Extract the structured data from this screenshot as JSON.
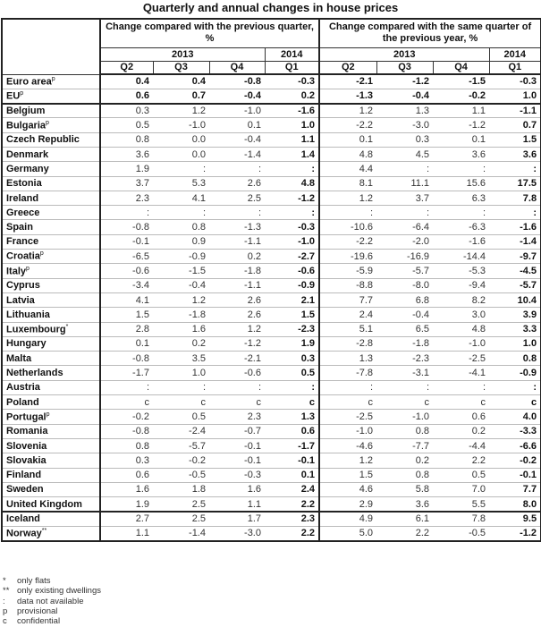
{
  "title": "Quarterly and annual changes in house prices",
  "header": {
    "group_prev_quarter": "Change compared with the previous quarter, %",
    "group_prev_year": "Change compared with the same quarter of the previous year, %",
    "year_2013": "2013",
    "year_2014": "2014",
    "quarters": [
      "Q2",
      "Q3",
      "Q4",
      "Q1"
    ]
  },
  "rows": [
    {
      "name": "Euro area",
      "sup": "p",
      "values": [
        "0.4",
        "0.4",
        "-0.8",
        "-0.3",
        "-2.1",
        "-1.2",
        "-1.5",
        "-0.3"
      ],
      "aggregate": true
    },
    {
      "name": "EU",
      "sup": "p",
      "values": [
        "0.6",
        "0.7",
        "-0.4",
        "0.2",
        "-1.3",
        "-0.4",
        "-0.2",
        "1.0"
      ],
      "aggregate": true,
      "thick": true
    },
    {
      "name": "Belgium",
      "values": [
        "0.3",
        "1.2",
        "-1.0",
        "-1.6",
        "1.2",
        "1.3",
        "1.1",
        "-1.1"
      ]
    },
    {
      "name": "Bulgaria",
      "sup": "p",
      "values": [
        "0.5",
        "-1.0",
        "0.1",
        "1.0",
        "-2.2",
        "-3.0",
        "-1.2",
        "0.7"
      ]
    },
    {
      "name": "Czech Republic",
      "values": [
        "0.8",
        "0.0",
        "-0.4",
        "1.1",
        "0.1",
        "0.3",
        "0.1",
        "1.5"
      ]
    },
    {
      "name": "Denmark",
      "values": [
        "3.6",
        "0.0",
        "-1.4",
        "1.4",
        "4.8",
        "4.5",
        "3.6",
        "3.6"
      ]
    },
    {
      "name": "Germany",
      "values": [
        "1.9",
        ":",
        ":",
        ":",
        "4.4",
        ":",
        ":",
        ":"
      ]
    },
    {
      "name": "Estonia",
      "values": [
        "3.7",
        "5.3",
        "2.6",
        "4.8",
        "8.1",
        "11.1",
        "15.6",
        "17.5"
      ]
    },
    {
      "name": "Ireland",
      "values": [
        "2.3",
        "4.1",
        "2.5",
        "-1.2",
        "1.2",
        "3.7",
        "6.3",
        "7.8"
      ]
    },
    {
      "name": "Greece",
      "values": [
        ":",
        ":",
        ":",
        ":",
        ":",
        ":",
        ":",
        ":"
      ]
    },
    {
      "name": "Spain",
      "values": [
        "-0.8",
        "0.8",
        "-1.3",
        "-0.3",
        "-10.6",
        "-6.4",
        "-6.3",
        "-1.6"
      ]
    },
    {
      "name": "France",
      "values": [
        "-0.1",
        "0.9",
        "-1.1",
        "-1.0",
        "-2.2",
        "-2.0",
        "-1.6",
        "-1.4"
      ]
    },
    {
      "name": "Croatia",
      "sup": "p",
      "values": [
        "-6.5",
        "-0.9",
        "0.2",
        "-2.7",
        "-19.6",
        "-16.9",
        "-14.4",
        "-9.7"
      ]
    },
    {
      "name": "Italy",
      "sup": "p",
      "values": [
        "-0.6",
        "-1.5",
        "-1.8",
        "-0.6",
        "-5.9",
        "-5.7",
        "-5.3",
        "-4.5"
      ]
    },
    {
      "name": "Cyprus",
      "values": [
        "-3.4",
        "-0.4",
        "-1.1",
        "-0.9",
        "-8.8",
        "-8.0",
        "-9.4",
        "-5.7"
      ]
    },
    {
      "name": "Latvia",
      "values": [
        "4.1",
        "1.2",
        "2.6",
        "2.1",
        "7.7",
        "6.8",
        "8.2",
        "10.4"
      ]
    },
    {
      "name": "Lithuania",
      "values": [
        "1.5",
        "-1.8",
        "2.6",
        "1.5",
        "2.4",
        "-0.4",
        "3.0",
        "3.9"
      ]
    },
    {
      "name": "Luxembourg",
      "sup": "*",
      "values": [
        "2.8",
        "1.6",
        "1.2",
        "-2.3",
        "5.1",
        "6.5",
        "4.8",
        "3.3"
      ]
    },
    {
      "name": "Hungary",
      "values": [
        "0.1",
        "0.2",
        "-1.2",
        "1.9",
        "-2.8",
        "-1.8",
        "-1.0",
        "1.0"
      ]
    },
    {
      "name": "Malta",
      "values": [
        "-0.8",
        "3.5",
        "-2.1",
        "0.3",
        "1.3",
        "-2.3",
        "-2.5",
        "0.8"
      ]
    },
    {
      "name": "Netherlands",
      "values": [
        "-1.7",
        "1.0",
        "-0.6",
        "0.5",
        "-7.8",
        "-3.1",
        "-4.1",
        "-0.9"
      ]
    },
    {
      "name": "Austria",
      "values": [
        ":",
        ":",
        ":",
        ":",
        ":",
        ":",
        ":",
        ":"
      ]
    },
    {
      "name": "Poland",
      "values": [
        "c",
        "c",
        "c",
        "c",
        "c",
        "c",
        "c",
        "c"
      ]
    },
    {
      "name": "Portugal",
      "sup": "p",
      "values": [
        "-0.2",
        "0.5",
        "2.3",
        "1.3",
        "-2.5",
        "-1.0",
        "0.6",
        "4.0"
      ]
    },
    {
      "name": "Romania",
      "values": [
        "-0.8",
        "-2.4",
        "-0.7",
        "0.6",
        "-1.0",
        "0.8",
        "0.2",
        "-3.3"
      ]
    },
    {
      "name": "Slovenia",
      "values": [
        "0.8",
        "-5.7",
        "-0.1",
        "-1.7",
        "-4.6",
        "-7.7",
        "-4.4",
        "-6.6"
      ]
    },
    {
      "name": "Slovakia",
      "values": [
        "0.3",
        "-0.2",
        "-0.1",
        "-0.1",
        "1.2",
        "0.2",
        "2.2",
        "-0.2"
      ]
    },
    {
      "name": "Finland",
      "values": [
        "0.6",
        "-0.5",
        "-0.3",
        "0.1",
        "1.5",
        "0.8",
        "0.5",
        "-0.1"
      ]
    },
    {
      "name": "Sweden",
      "values": [
        "1.6",
        "1.8",
        "1.6",
        "2.4",
        "4.6",
        "5.8",
        "7.0",
        "7.7"
      ]
    },
    {
      "name": "United Kingdom",
      "values": [
        "1.9",
        "2.5",
        "1.1",
        "2.2",
        "2.9",
        "3.6",
        "5.5",
        "8.0"
      ],
      "thick": true
    },
    {
      "name": "Iceland",
      "values": [
        "2.7",
        "2.5",
        "1.7",
        "2.3",
        "4.9",
        "6.1",
        "7.8",
        "9.5"
      ]
    },
    {
      "name": "Norway",
      "sup": "**",
      "values": [
        "1.1",
        "-1.4",
        "-3.0",
        "2.2",
        "5.0",
        "2.2",
        "-0.5",
        "-1.2"
      ],
      "thick": true
    }
  ],
  "footnotes": [
    {
      "key": "*",
      "text": "only flats"
    },
    {
      "key": "**",
      "text": "only existing dwellings"
    },
    {
      "key": ":",
      "text": "data not available"
    },
    {
      "key": "p",
      "text": "provisional"
    },
    {
      "key": "c",
      "text": "confidential"
    }
  ]
}
